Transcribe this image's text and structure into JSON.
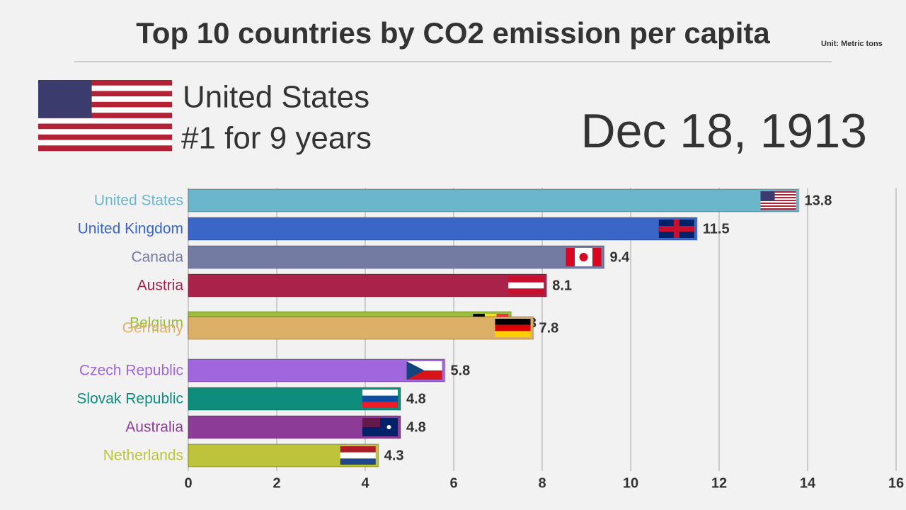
{
  "chart_data": {
    "type": "bar",
    "orientation": "horizontal",
    "title": "Top 10 countries by CO2 emission per capita",
    "unit_note": "Unit: Metric tons",
    "leader": "United States",
    "leader_note": "#1 for 9 years",
    "date": "Dec 18, 1913",
    "categories": [
      "United States",
      "United Kingdom",
      "Canada",
      "Austria",
      "Belgium",
      "Germany",
      "Czech Republic",
      "Slovak Republic",
      "Australia",
      "Netherlands"
    ],
    "values": [
      13.8,
      11.5,
      9.4,
      8.1,
      7.3,
      7.8,
      5.8,
      4.8,
      4.8,
      4.3
    ],
    "colors": [
      "#6cb6cc",
      "#3a66c8",
      "#737ba3",
      "#a8224a",
      "#9cbf3a",
      "#ddb068",
      "#a066de",
      "#0e8c7c",
      "#8c3c96",
      "#bec43a"
    ],
    "xlim": [
      0,
      16
    ],
    "xticks": [
      0,
      2,
      4,
      6,
      8,
      10,
      12,
      14,
      16
    ],
    "grid": true
  }
}
